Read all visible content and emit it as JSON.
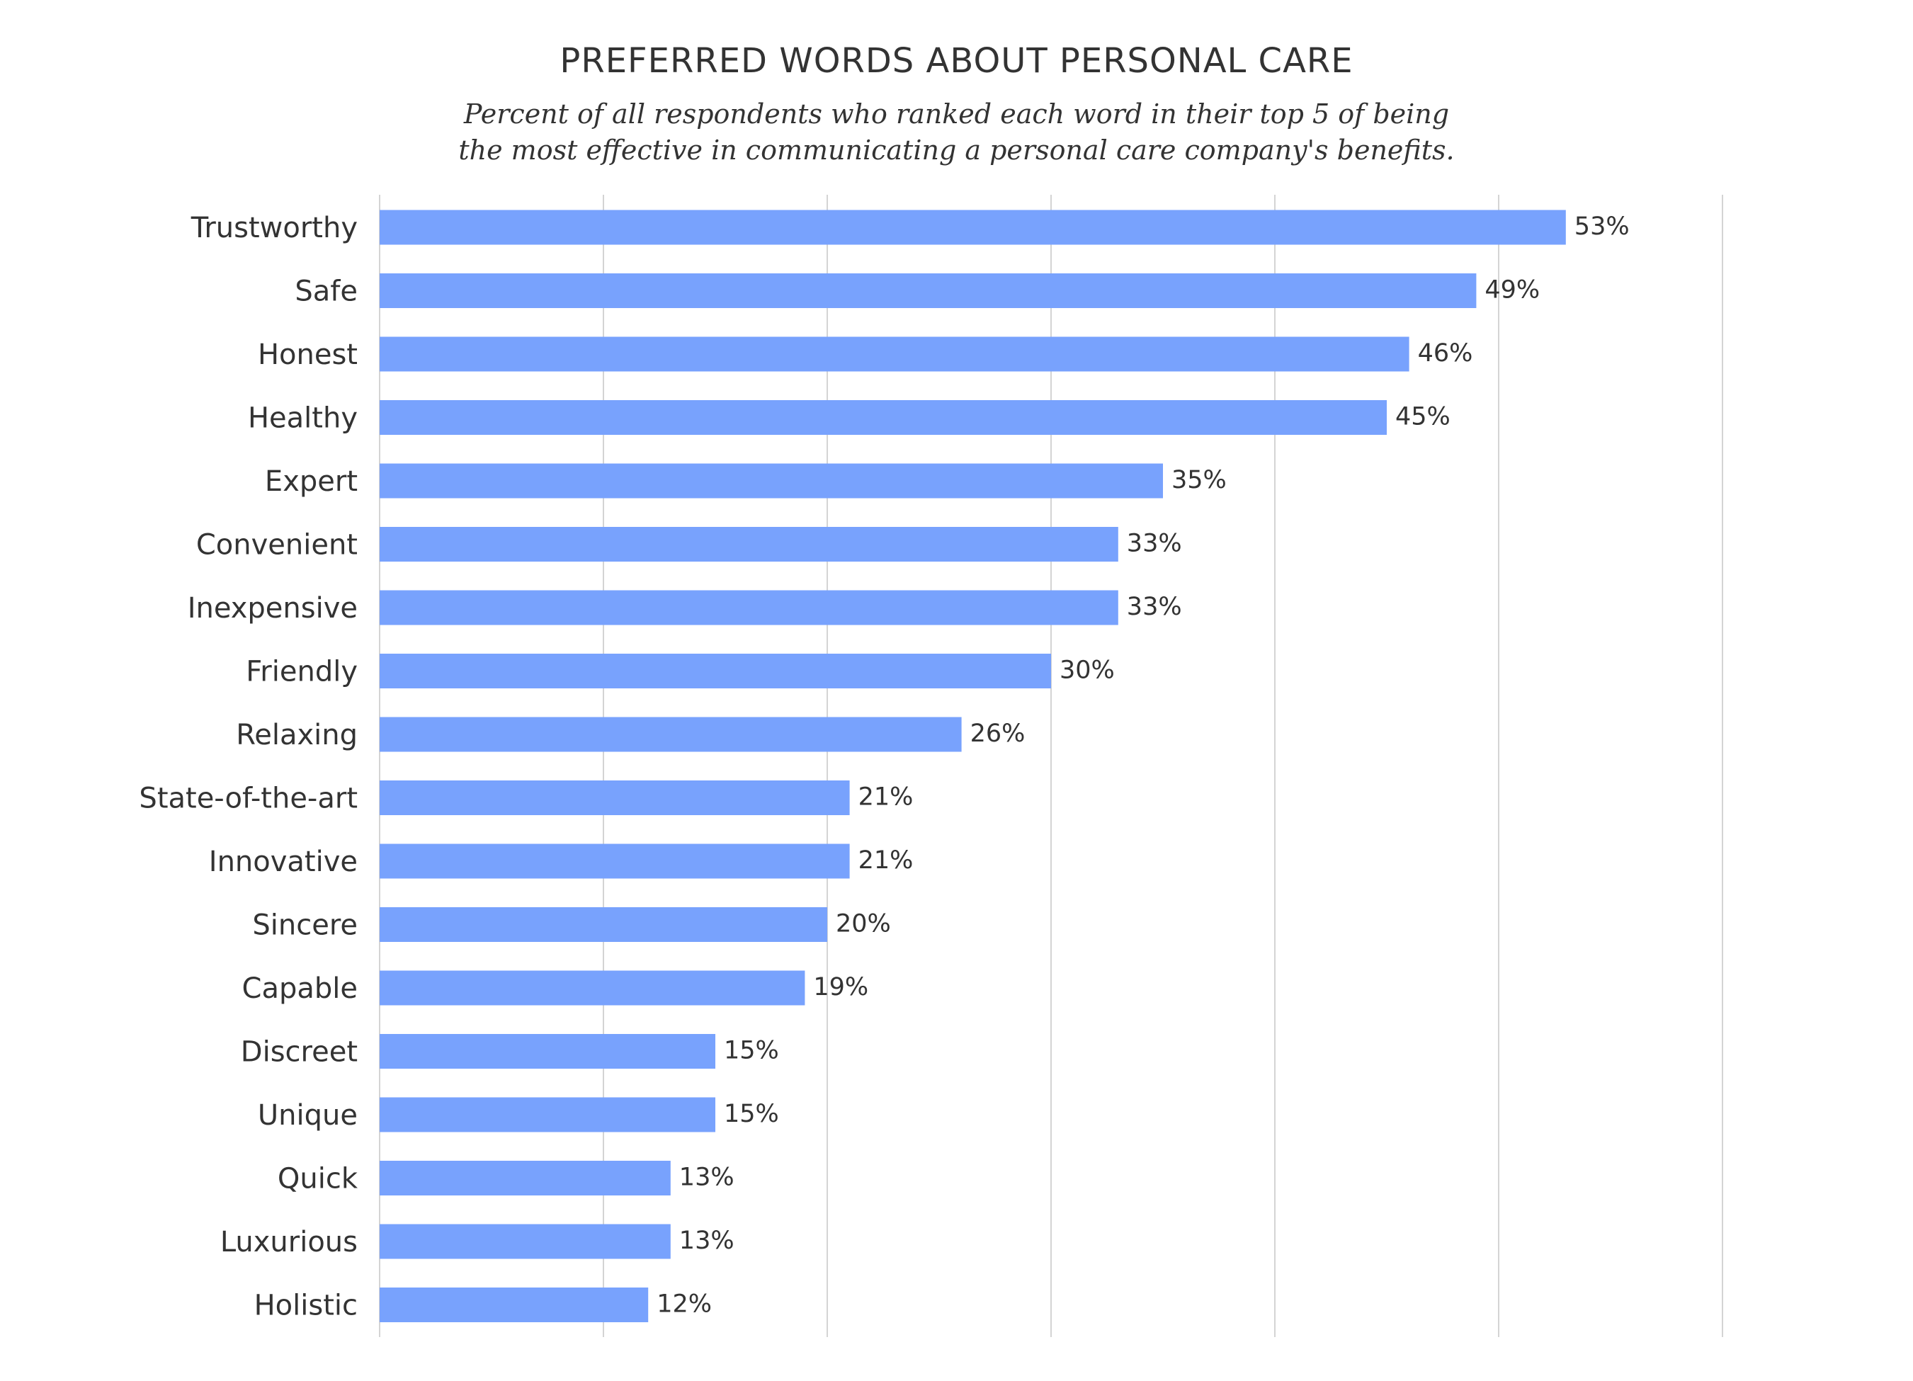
{
  "chart_data": {
    "type": "bar",
    "orientation": "horizontal",
    "title": "PREFERRED WORDS ABOUT PERSONAL CARE",
    "subtitle": [
      "Percent of all respondents who ranked each word in their top 5 of being",
      "the most effective in communicating a personal care company's benefits."
    ],
    "categories": [
      "Trustworthy",
      "Safe",
      "Honest",
      "Healthy",
      "Expert",
      "Convenient",
      "Inexpensive",
      "Friendly",
      "Relaxing",
      "State-of-the-art",
      "Innovative",
      "Sincere",
      "Capable",
      "Discreet",
      "Unique",
      "Quick",
      "Luxurious",
      "Holistic"
    ],
    "values": [
      53,
      49,
      46,
      45,
      35,
      33,
      33,
      30,
      26,
      21,
      21,
      20,
      19,
      15,
      15,
      13,
      13,
      12
    ],
    "value_labels": [
      "53%",
      "49%",
      "46%",
      "45%",
      "35%",
      "33%",
      "33%",
      "30%",
      "26%",
      "21%",
      "21%",
      "20%",
      "19%",
      "15%",
      "15%",
      "13%",
      "13%",
      "12%"
    ],
    "xlim": [
      0,
      60
    ],
    "grid": true,
    "bar_color": "#78a2fd",
    "grid_color": "#d4d4d4",
    "text_color": "#333333"
  }
}
